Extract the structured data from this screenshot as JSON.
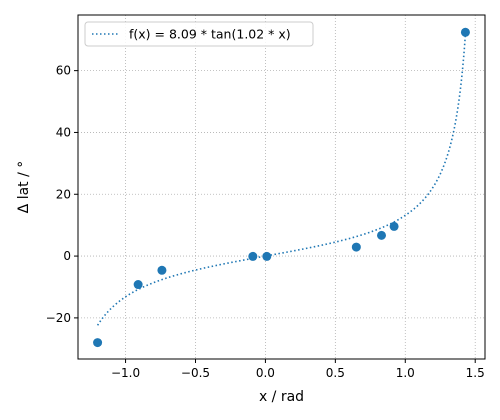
{
  "chart_data": {
    "type": "scatter",
    "xlabel": "x / rad",
    "ylabel": "Δ lat / °",
    "xlim": [
      -1.34,
      1.57
    ],
    "ylim": [
      -33.3,
      78.0
    ],
    "xticks": [
      -1.0,
      -0.5,
      0.0,
      0.5,
      1.0,
      1.5
    ],
    "xtick_labels": [
      "−1.0",
      "−0.5",
      "0.0",
      "0.5",
      "1.0",
      "1.5"
    ],
    "yticks": [
      -20,
      0,
      20,
      40,
      60
    ],
    "ytick_labels": [
      "−20",
      "0",
      "20",
      "40",
      "60"
    ],
    "grid": true,
    "legend_position": "top-left",
    "series": [
      {
        "name": "f(x) = 8.09 * tan(1.02 * x)",
        "kind": "line",
        "style": "dotted",
        "color": "#1f77b4",
        "function": {
          "a": 8.09,
          "b": 1.02
        },
        "x_range": [
          -1.2,
          1.43
        ]
      },
      {
        "kind": "scatter",
        "color": "#1f77b4",
        "points": [
          {
            "x": -1.2,
            "y": -28.0
          },
          {
            "x": -0.91,
            "y": -9.2
          },
          {
            "x": -0.74,
            "y": -4.6
          },
          {
            "x": -0.09,
            "y": -0.1
          },
          {
            "x": 0.01,
            "y": -0.1
          },
          {
            "x": 0.65,
            "y": 2.9
          },
          {
            "x": 0.83,
            "y": 6.7
          },
          {
            "x": 0.92,
            "y": 9.6
          },
          {
            "x": 1.43,
            "y": 72.4
          }
        ]
      }
    ]
  }
}
